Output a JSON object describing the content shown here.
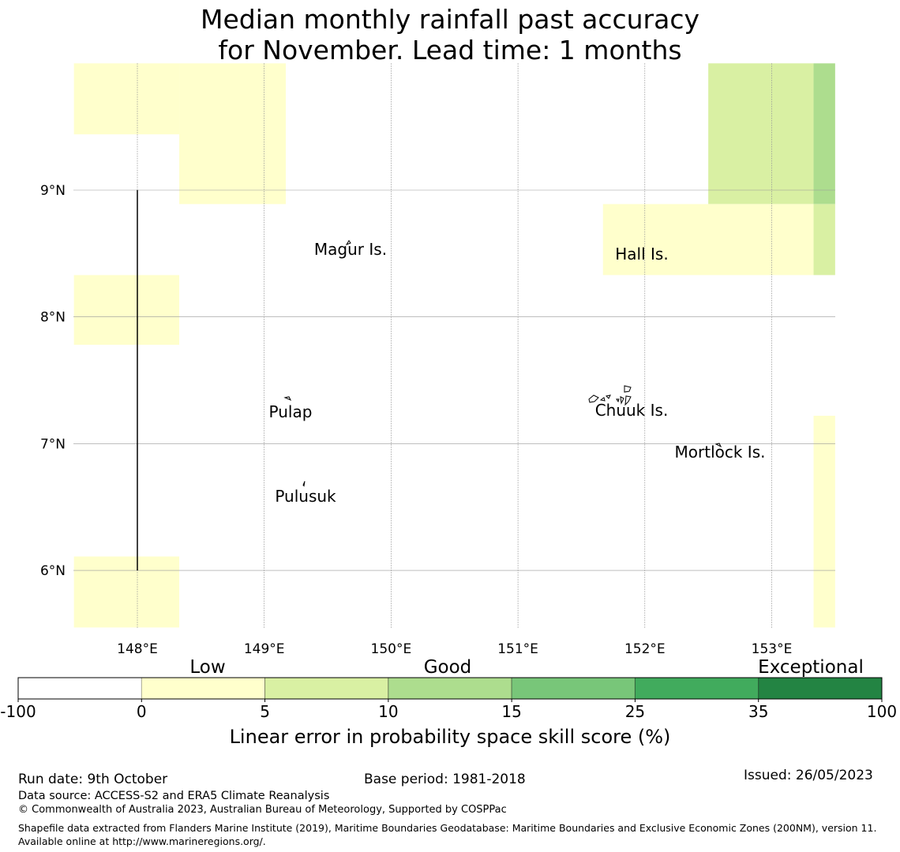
{
  "title": {
    "line1": "Median monthly rainfall past accuracy",
    "line2": "for November. Lead time: 1 months"
  },
  "map": {
    "lon_range": [
      147.5,
      153.5
    ],
    "lat_range": [
      5.55,
      10.0
    ],
    "lon_ticks": [
      {
        "value": 148,
        "label": "148°E"
      },
      {
        "value": 149,
        "label": "149°E"
      },
      {
        "value": 150,
        "label": "150°E"
      },
      {
        "value": 151,
        "label": "151°E"
      },
      {
        "value": 152,
        "label": "152°E"
      },
      {
        "value": 153,
        "label": "153°E"
      }
    ],
    "lat_ticks": [
      {
        "value": 9,
        "label": "9°N"
      },
      {
        "value": 8,
        "label": "8°N"
      },
      {
        "value": 7,
        "label": "7°N"
      },
      {
        "value": 6,
        "label": "6°N"
      }
    ],
    "skill_cells": [
      {
        "lon": [
          147.5,
          148.33
        ],
        "lat": [
          9.44,
          10.0
        ],
        "category": "0-5"
      },
      {
        "lon": [
          148.33,
          149.17
        ],
        "lat": [
          8.89,
          10.0
        ],
        "category": "0-5"
      },
      {
        "lon": [
          147.5,
          148.33
        ],
        "lat": [
          7.78,
          8.33
        ],
        "category": "0-5"
      },
      {
        "lon": [
          147.5,
          148.33
        ],
        "lat": [
          5.55,
          6.11
        ],
        "category": "0-5"
      },
      {
        "lon": [
          152.5,
          153.33
        ],
        "lat": [
          8.89,
          10.0
        ],
        "category": "5-10"
      },
      {
        "lon": [
          153.33,
          153.5
        ],
        "lat": [
          8.89,
          10.0
        ],
        "category": "10-15"
      },
      {
        "lon": [
          151.67,
          153.33
        ],
        "lat": [
          8.33,
          8.89
        ],
        "category": "0-5"
      },
      {
        "lon": [
          153.33,
          153.5
        ],
        "lat": [
          8.33,
          8.89
        ],
        "category": "5-10"
      },
      {
        "lon": [
          153.33,
          153.5
        ],
        "lat": [
          5.55,
          7.22
        ],
        "category": "0-5"
      }
    ],
    "boundary_line": {
      "lon": 148.0,
      "lat": [
        6.0,
        9.0
      ]
    },
    "islands": [
      {
        "name": "Magur Is.",
        "lon": 149.67,
        "lat": 8.55
      },
      {
        "name": "Hall Is.",
        "lon": 151.98,
        "lat": 8.5
      },
      {
        "name": "Pulap",
        "lon": 149.2,
        "lat": 7.35
      },
      {
        "name": "Chuuk Is.",
        "lon": 151.8,
        "lat": 7.4
      },
      {
        "name": "Mortlock Is.",
        "lon": 152.6,
        "lat": 6.95
      },
      {
        "name": "Pulusuk",
        "lon": 149.32,
        "lat": 6.7
      }
    ]
  },
  "colorbar": {
    "category_labels": [
      "Low",
      "Good",
      "Exceptional"
    ],
    "bins": [
      {
        "from": "-100",
        "to": "0",
        "color": "#ffffff"
      },
      {
        "from": "0",
        "to": "5",
        "color": "#ffffcc"
      },
      {
        "from": "5",
        "to": "10",
        "color": "#d9f0a3"
      },
      {
        "from": "10",
        "to": "15",
        "color": "#addd8e"
      },
      {
        "from": "15",
        "to": "25",
        "color": "#78c679"
      },
      {
        "from": "25",
        "to": "35",
        "color": "#41ab5d"
      },
      {
        "from": "35",
        "to": "100",
        "color": "#238443"
      }
    ],
    "tick_labels": [
      "-100",
      "0",
      "5",
      "10",
      "15",
      "25",
      "35",
      "100"
    ],
    "axis_label": "Linear error in probability space skill score (%)"
  },
  "footer": {
    "run_date": "Run date: 9th October",
    "base_period": "Base period: 1981-2018",
    "issued": "Issued: 26/05/2023",
    "data_source": "Data source: ACCESS-S2 and ERA5 Climate Reanalysis",
    "copyright": "© Commonwealth of Australia 2023, Australian Bureau of Meteorology, Supported by COSPPac",
    "shapefile": "Shapefile data extracted from Flanders Marine Institute (2019), Maritime Boundaries Geodatabase: Maritime Boundaries and Exclusive Economic Zones (200NM), version 11. Available online at http://www.marineregions.org/."
  }
}
